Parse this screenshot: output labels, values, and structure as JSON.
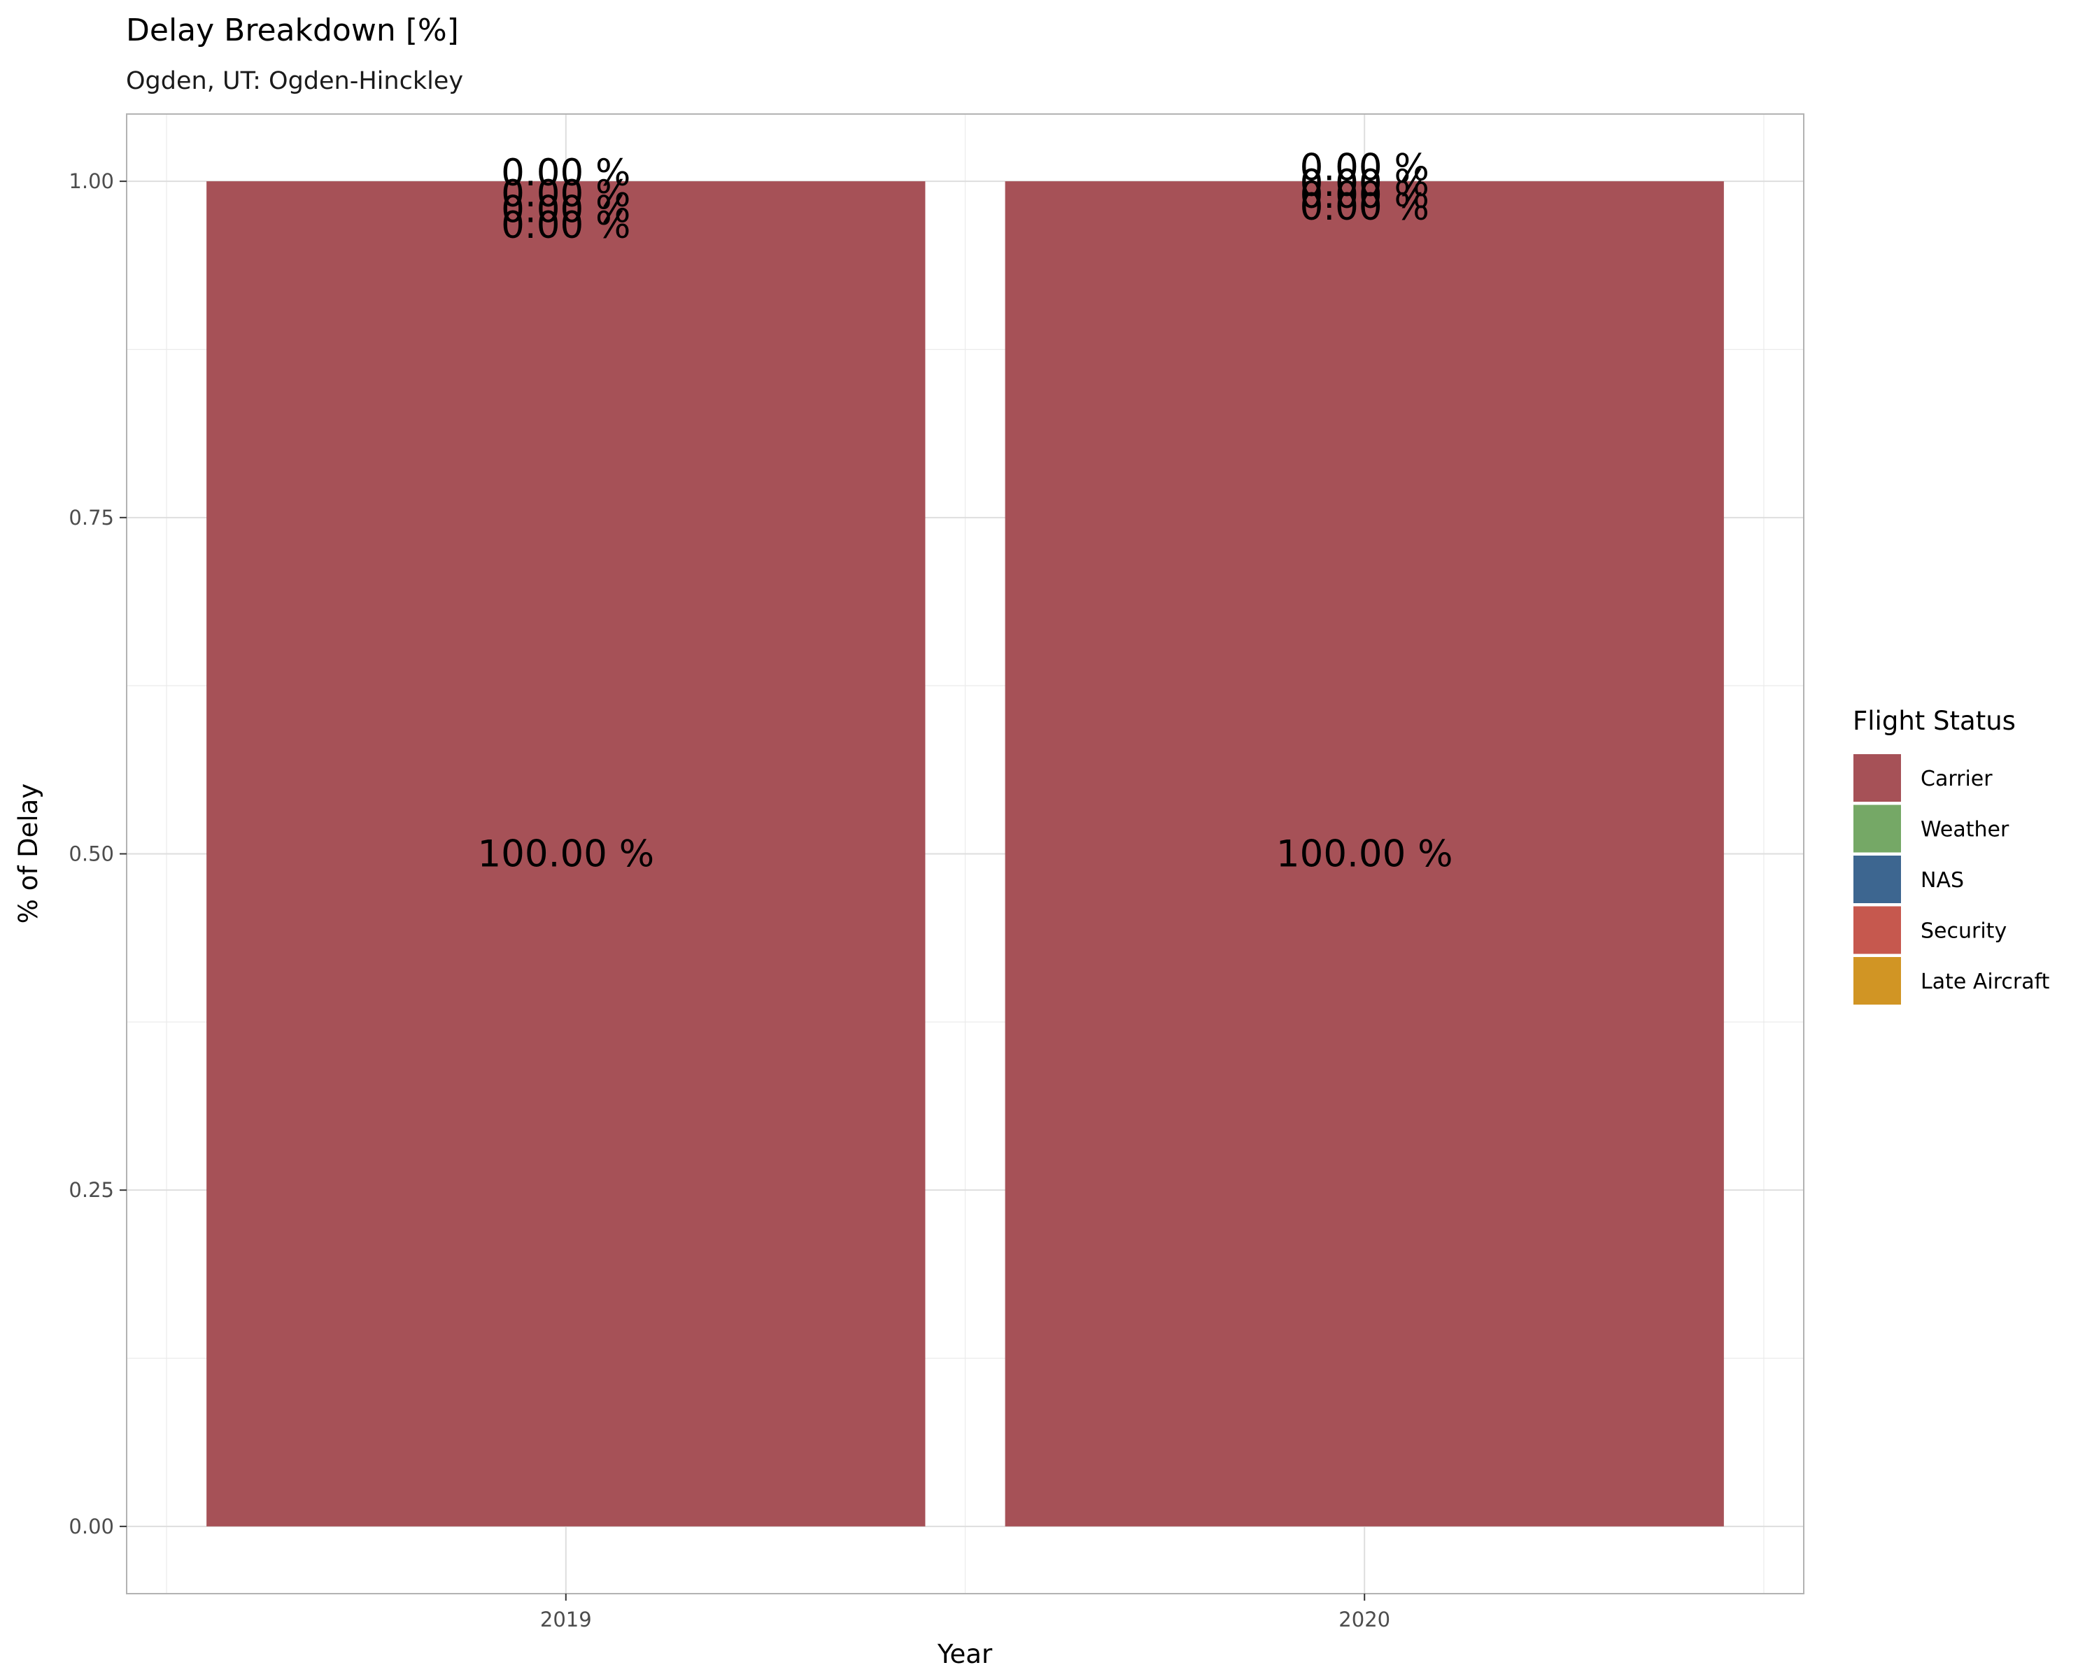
{
  "chart_data": {
    "type": "bar",
    "stacked": true,
    "title": "Delay Breakdown [%]",
    "subtitle": "Ogden, UT: Ogden-Hinckley",
    "xlabel": "Year",
    "ylabel": "% of Delay",
    "categories": [
      "2019",
      "2020"
    ],
    "ylim": [
      -0.05,
      1.05
    ],
    "yticks": [
      "0.00",
      "0.25",
      "0.50",
      "0.75",
      "1.00"
    ],
    "grid": true,
    "legend": {
      "title": "Flight Status",
      "position": "right",
      "entries": [
        "Carrier",
        "Weather",
        "NAS",
        "Security",
        "Late Aircraft"
      ]
    },
    "series": [
      {
        "name": "Carrier",
        "color": "#A65157",
        "values": [
          1.0,
          1.0
        ],
        "labels": [
          "100.00 %",
          "100.00 %"
        ]
      },
      {
        "name": "Weather",
        "color": "#75A866",
        "values": [
          0.0,
          0.0
        ],
        "labels": [
          "0.00 %",
          "0.00 %"
        ]
      },
      {
        "name": "NAS",
        "color": "#3D6690",
        "values": [
          0.0,
          0.0
        ],
        "labels": [
          "0.00 %",
          "0.00 %"
        ]
      },
      {
        "name": "Security",
        "color": "#C6584E",
        "values": [
          0.0,
          0.0
        ],
        "labels": [
          "0.00 %",
          "0.00 %"
        ]
      },
      {
        "name": "Late Aircraft",
        "color": "#D19524",
        "values": [
          0.0,
          0.0
        ],
        "labels": [
          "0.00 %",
          "0.00 %"
        ]
      }
    ]
  }
}
